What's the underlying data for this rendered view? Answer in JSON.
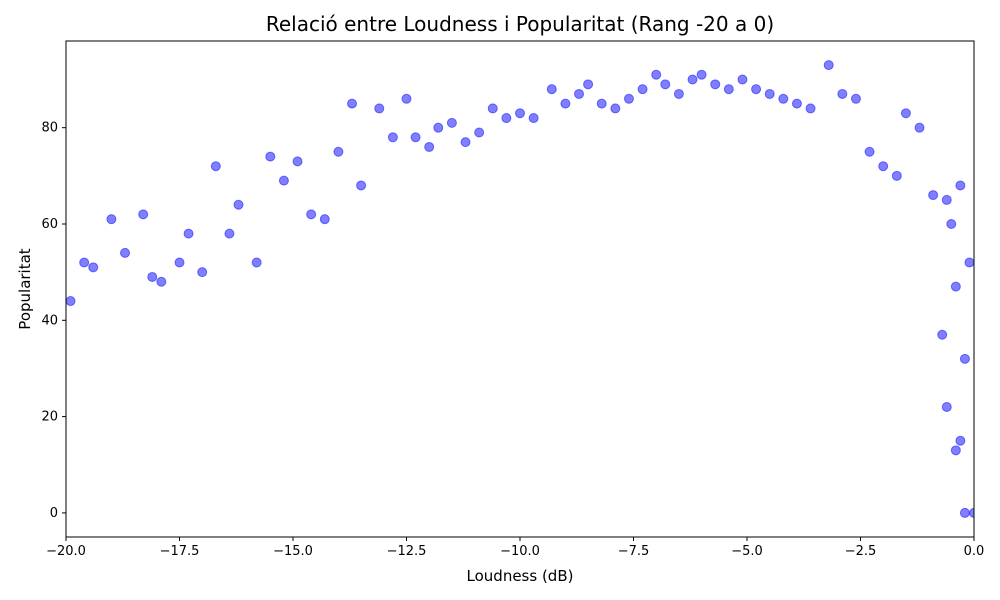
{
  "chart_data": {
    "type": "scatter",
    "title": "Relació entre Loudness i Popularitat (Rang -20 a 0)",
    "xlabel": "Loudness (dB)",
    "ylabel": "Popularitat",
    "xlim": [
      -20,
      0
    ],
    "ylim": [
      -5,
      98
    ],
    "xticks": [
      -20.0,
      -17.5,
      -15.0,
      -12.5,
      -10.0,
      -7.5,
      -5.0,
      -2.5,
      0.0
    ],
    "xtick_labels": [
      "−20.0",
      "−17.5",
      "−15.0",
      "−12.5",
      "−10.0",
      "−7.5",
      "−5.0",
      "−2.5",
      "0.0"
    ],
    "yticks": [
      0,
      20,
      40,
      60,
      80
    ],
    "ytick_labels": [
      "0",
      "20",
      "40",
      "60",
      "80"
    ],
    "grid": false,
    "marker_color": "#0000ff",
    "marker_alpha": 0.5,
    "series": [
      {
        "points": [
          [
            -19.9,
            44
          ],
          [
            -19.6,
            52
          ],
          [
            -19.4,
            51
          ],
          [
            -19.0,
            61
          ],
          [
            -18.7,
            54
          ],
          [
            -18.3,
            62
          ],
          [
            -18.1,
            49
          ],
          [
            -17.9,
            48
          ],
          [
            -17.5,
            52
          ],
          [
            -17.3,
            58
          ],
          [
            -17.0,
            50
          ],
          [
            -16.7,
            72
          ],
          [
            -16.4,
            58
          ],
          [
            -16.2,
            64
          ],
          [
            -15.8,
            52
          ],
          [
            -15.5,
            74
          ],
          [
            -15.2,
            69
          ],
          [
            -14.9,
            73
          ],
          [
            -14.6,
            62
          ],
          [
            -14.3,
            61
          ],
          [
            -14.0,
            75
          ],
          [
            -13.7,
            85
          ],
          [
            -13.5,
            68
          ],
          [
            -13.1,
            84
          ],
          [
            -12.8,
            78
          ],
          [
            -12.5,
            86
          ],
          [
            -12.3,
            78
          ],
          [
            -12.0,
            76
          ],
          [
            -11.8,
            80
          ],
          [
            -11.5,
            81
          ],
          [
            -11.2,
            77
          ],
          [
            -10.9,
            79
          ],
          [
            -10.6,
            84
          ],
          [
            -10.3,
            82
          ],
          [
            -10.0,
            83
          ],
          [
            -9.7,
            82
          ],
          [
            -9.3,
            88
          ],
          [
            -9.0,
            85
          ],
          [
            -8.7,
            87
          ],
          [
            -8.5,
            89
          ],
          [
            -8.2,
            85
          ],
          [
            -7.9,
            84
          ],
          [
            -7.6,
            86
          ],
          [
            -7.3,
            88
          ],
          [
            -7.0,
            91
          ],
          [
            -6.8,
            89
          ],
          [
            -6.5,
            87
          ],
          [
            -6.2,
            90
          ],
          [
            -6.0,
            91
          ],
          [
            -5.7,
            89
          ],
          [
            -5.4,
            88
          ],
          [
            -5.1,
            90
          ],
          [
            -4.8,
            88
          ],
          [
            -4.5,
            87
          ],
          [
            -4.2,
            86
          ],
          [
            -3.9,
            85
          ],
          [
            -3.6,
            84
          ],
          [
            -3.2,
            93
          ],
          [
            -2.9,
            87
          ],
          [
            -2.6,
            86
          ],
          [
            -2.3,
            75
          ],
          [
            -2.0,
            72
          ],
          [
            -1.7,
            70
          ],
          [
            -1.5,
            83
          ],
          [
            -1.2,
            80
          ],
          [
            -0.9,
            66
          ],
          [
            -0.6,
            65
          ],
          [
            -0.3,
            68
          ],
          [
            -0.1,
            52
          ],
          [
            -0.5,
            60
          ],
          [
            -0.4,
            47
          ],
          [
            -0.7,
            37
          ],
          [
            -0.2,
            32
          ],
          [
            -0.6,
            22
          ],
          [
            -0.3,
            15
          ],
          [
            -0.4,
            13
          ],
          [
            -0.2,
            0
          ],
          [
            0.0,
            0
          ]
        ]
      }
    ]
  }
}
